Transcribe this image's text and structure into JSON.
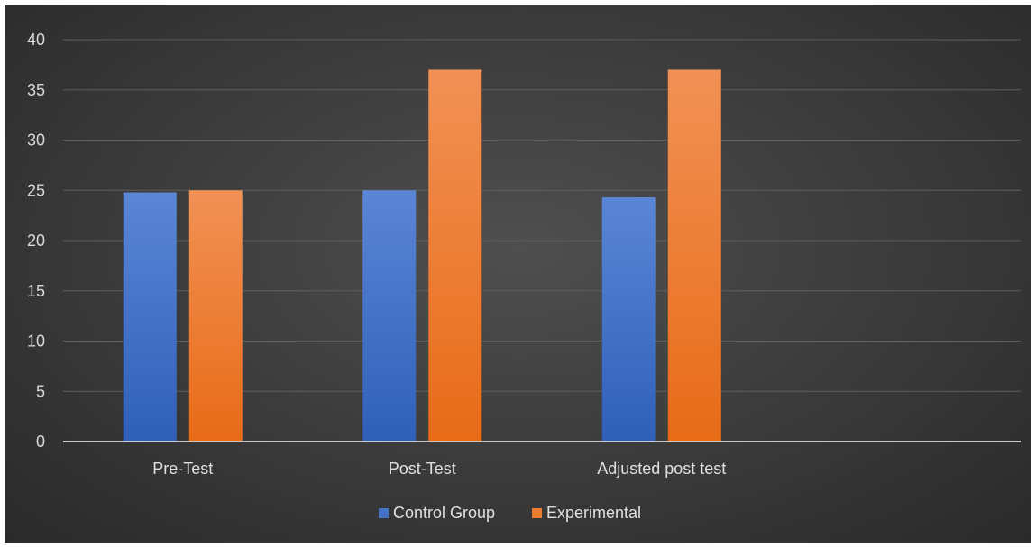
{
  "chart_data": {
    "type": "bar",
    "categories": [
      "Pre-Test",
      "Post-Test",
      "Adjusted post test",
      ""
    ],
    "series": [
      {
        "name": "Control Group",
        "values": [
          24.8,
          25.0,
          24.3,
          null
        ],
        "color": "#4472c4"
      },
      {
        "name": "Experimental",
        "values": [
          25.0,
          37.0,
          37.0,
          null
        ],
        "color": "#ed7d31"
      }
    ],
    "ylim": [
      0,
      40
    ],
    "yticks": [
      0,
      5,
      10,
      15,
      20,
      25,
      30,
      35,
      40
    ],
    "grid": true,
    "legend_position": "bottom",
    "title": "",
    "xlabel": "",
    "ylabel": ""
  }
}
